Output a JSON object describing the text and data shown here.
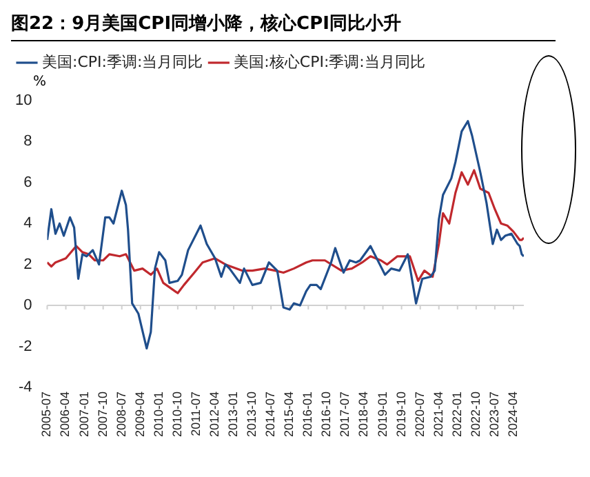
{
  "chart_data": {
    "type": "line",
    "title": "图22：9月美国CPI同增小降，核心CPI同比小升",
    "ylabel": "%",
    "xlim": [
      "2005-07",
      "2024-09"
    ],
    "xticks": [
      "2005-07",
      "2006-04",
      "2007-01",
      "2007-10",
      "2008-07",
      "2009-04",
      "2010-01",
      "2010-10",
      "2011-07",
      "2012-04",
      "2013-01",
      "2013-10",
      "2014-07",
      "2015-04",
      "2016-01",
      "2016-10",
      "2017-07",
      "2018-04",
      "2019-01",
      "2019-10",
      "2020-07",
      "2021-04",
      "2022-01",
      "2022-10",
      "2023-07",
      "2024-04"
    ],
    "ylim": [
      -4,
      10
    ],
    "yticks": [
      -4,
      -2,
      0,
      2,
      4,
      6,
      8,
      10
    ],
    "grid": false,
    "legend": "top left",
    "marker": "none",
    "line_style": "solid",
    "ref_lines": [
      {
        "axis": "y",
        "value": 0,
        "color": "#d0d0d0"
      }
    ],
    "series": [
      {
        "name": "美国:CPI:季调:当月同比",
        "color": "#1f4e8c",
        "x": [
          "2005-07",
          "2005-09",
          "2005-11",
          "2006-01",
          "2006-03",
          "2006-06",
          "2006-08",
          "2006-10",
          "2006-12",
          "2007-02",
          "2007-05",
          "2007-08",
          "2007-11",
          "2008-01",
          "2008-03",
          "2008-07",
          "2008-09",
          "2008-10",
          "2008-12",
          "2009-03",
          "2009-07",
          "2009-09",
          "2009-11",
          "2010-01",
          "2010-04",
          "2010-06",
          "2010-10",
          "2010-12",
          "2011-03",
          "2011-09",
          "2011-12",
          "2012-04",
          "2012-07",
          "2012-09",
          "2012-11",
          "2013-04",
          "2013-06",
          "2013-10",
          "2014-02",
          "2014-06",
          "2014-10",
          "2015-01",
          "2015-04",
          "2015-06",
          "2015-09",
          "2015-12",
          "2016-02",
          "2016-05",
          "2016-07",
          "2016-12",
          "2017-02",
          "2017-06",
          "2017-09",
          "2017-12",
          "2018-02",
          "2018-07",
          "2018-12",
          "2019-02",
          "2019-05",
          "2019-09",
          "2019-12",
          "2020-01",
          "2020-05",
          "2020-08",
          "2020-12",
          "2021-02",
          "2021-04",
          "2021-06",
          "2021-10",
          "2021-12",
          "2022-03",
          "2022-06",
          "2022-08",
          "2022-12",
          "2023-03",
          "2023-06",
          "2023-08",
          "2023-10",
          "2023-12",
          "2024-03",
          "2024-06",
          "2024-07",
          "2024-08",
          "2024-09"
        ],
        "values": [
          3.2,
          4.7,
          3.5,
          4.0,
          3.4,
          4.3,
          3.8,
          1.3,
          2.5,
          2.4,
          2.7,
          2.0,
          4.3,
          4.3,
          4.0,
          5.6,
          4.9,
          3.7,
          0.1,
          -0.4,
          -2.1,
          -1.3,
          1.8,
          2.6,
          2.2,
          1.1,
          1.2,
          1.5,
          2.7,
          3.9,
          3.0,
          2.3,
          1.4,
          2.0,
          1.8,
          1.1,
          1.8,
          1.0,
          1.1,
          2.1,
          1.7,
          -0.1,
          -0.2,
          0.1,
          0.0,
          0.7,
          1.0,
          1.0,
          0.8,
          2.1,
          2.8,
          1.6,
          2.2,
          2.1,
          2.2,
          2.9,
          1.9,
          1.5,
          1.8,
          1.7,
          2.3,
          2.5,
          0.1,
          1.3,
          1.4,
          1.7,
          4.2,
          5.4,
          6.2,
          7.0,
          8.5,
          9.0,
          8.3,
          6.5,
          5.0,
          3.0,
          3.7,
          3.2,
          3.4,
          3.5,
          3.0,
          2.9,
          2.5,
          2.4
        ]
      },
      {
        "name": "美国:核心CPI:季调:当月同比",
        "color": "#c0282d",
        "x": [
          "2005-07",
          "2005-09",
          "2005-11",
          "2006-04",
          "2006-09",
          "2006-12",
          "2007-03",
          "2007-06",
          "2007-10",
          "2008-01",
          "2008-06",
          "2008-09",
          "2009-01",
          "2009-05",
          "2009-09",
          "2009-12",
          "2010-03",
          "2010-10",
          "2011-01",
          "2011-06",
          "2011-10",
          "2012-04",
          "2012-09",
          "2013-05",
          "2013-10",
          "2014-04",
          "2014-09",
          "2015-01",
          "2015-06",
          "2015-12",
          "2016-03",
          "2016-09",
          "2017-05",
          "2017-10",
          "2018-03",
          "2018-07",
          "2018-12",
          "2019-03",
          "2019-08",
          "2020-02",
          "2020-06",
          "2020-09",
          "2021-01",
          "2021-04",
          "2021-06",
          "2021-09",
          "2021-12",
          "2022-03",
          "2022-06",
          "2022-09",
          "2022-12",
          "2023-04",
          "2023-07",
          "2023-10",
          "2024-01",
          "2024-04",
          "2024-07",
          "2024-08",
          "2024-09"
        ],
        "values": [
          2.1,
          1.9,
          2.1,
          2.3,
          2.9,
          2.6,
          2.5,
          2.2,
          2.2,
          2.5,
          2.4,
          2.5,
          1.7,
          1.8,
          1.5,
          1.8,
          1.1,
          0.6,
          1.0,
          1.6,
          2.1,
          2.3,
          2.0,
          1.7,
          1.7,
          1.8,
          1.7,
          1.6,
          1.8,
          2.1,
          2.2,
          2.2,
          1.7,
          1.8,
          2.1,
          2.4,
          2.2,
          2.0,
          2.4,
          2.4,
          1.2,
          1.7,
          1.4,
          3.0,
          4.5,
          4.0,
          5.5,
          6.5,
          5.9,
          6.6,
          5.7,
          5.5,
          4.7,
          4.0,
          3.9,
          3.6,
          3.2,
          3.2,
          3.3
        ]
      }
    ]
  }
}
